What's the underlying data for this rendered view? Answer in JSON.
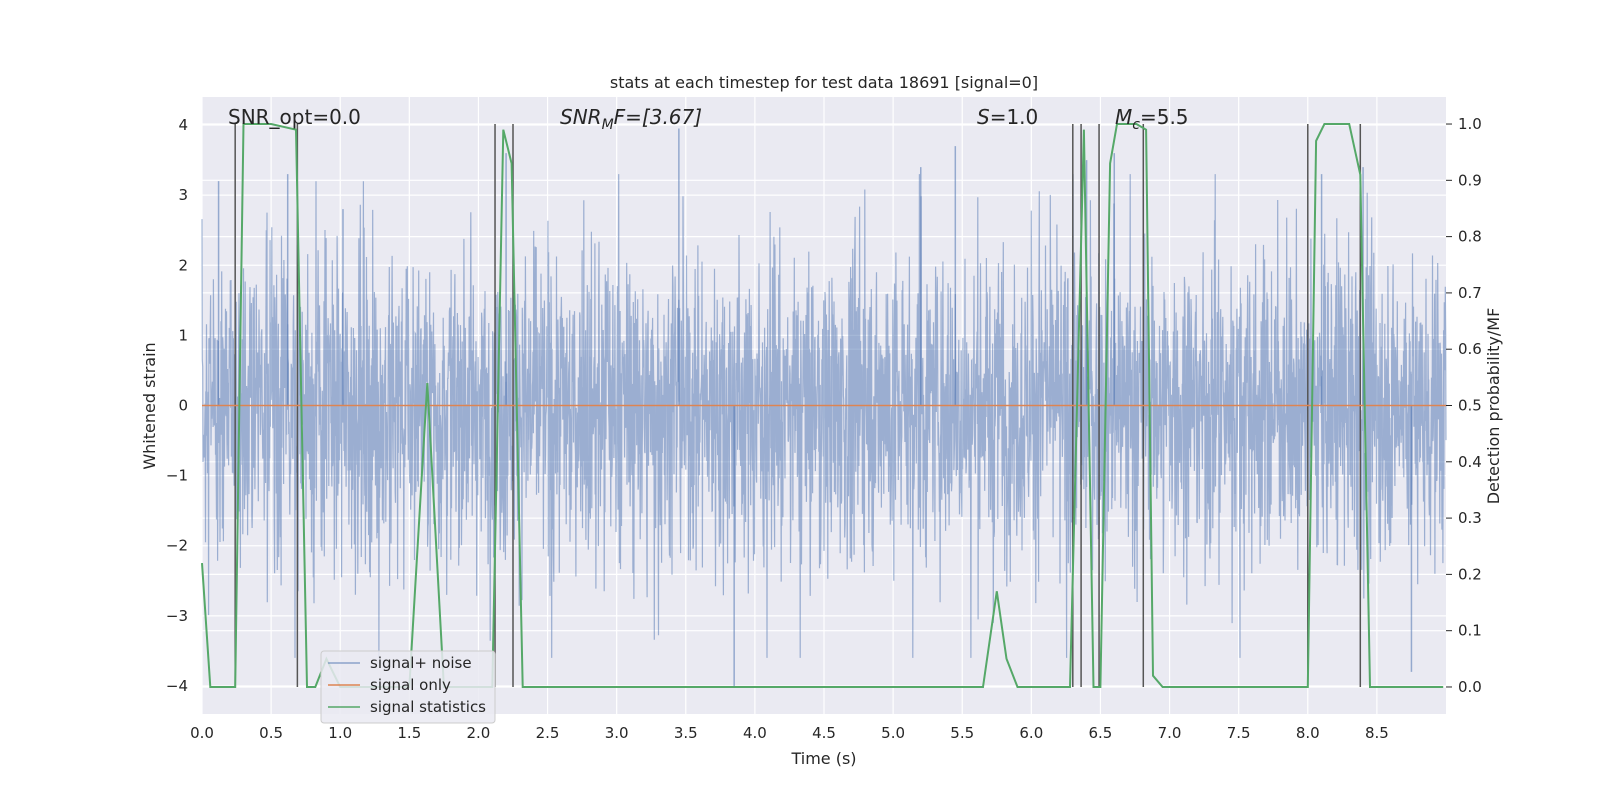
{
  "chart_data": {
    "type": "line",
    "title": "stats at each timestep for test data 18691 [signal=0]",
    "xlabel": "Time (s)",
    "ylabel": "Whitened strain",
    "y2label": "Detection probability/MF",
    "xlim": [
      0,
      9.0
    ],
    "ylim": [
      -4.4,
      4.4
    ],
    "y2lim": [
      -0.048,
      1.048
    ],
    "xticks": [
      0.0,
      0.5,
      1.0,
      1.5,
      2.0,
      2.5,
      3.0,
      3.5,
      4.0,
      4.5,
      5.0,
      5.5,
      6.0,
      6.5,
      7.0,
      7.5,
      8.0,
      8.5
    ],
    "xtick_labels": [
      "0.0",
      "0.5",
      "1.0",
      "1.5",
      "2.0",
      "2.5",
      "3.0",
      "3.5",
      "4.0",
      "4.5",
      "5.0",
      "5.5",
      "6.0",
      "6.5",
      "7.0",
      "7.5",
      "8.0",
      "8.5"
    ],
    "yticks": [
      4,
      3,
      2,
      1,
      0,
      -1,
      -2,
      -3,
      -4
    ],
    "ytick_labels": [
      "4",
      "3",
      "2",
      "1",
      "0",
      "−1",
      "−2",
      "−3",
      "−4"
    ],
    "y2ticks": [
      1.0,
      0.9,
      0.8,
      0.7,
      0.6,
      0.5,
      0.4,
      0.3,
      0.2,
      0.1,
      0.0
    ],
    "y2tick_labels": [
      "1.0",
      "0.9",
      "0.8",
      "0.7",
      "0.6",
      "0.5",
      "0.4",
      "0.3",
      "0.2",
      "0.1",
      "0.0"
    ],
    "grid": true,
    "legend_position": "lower-left",
    "annotations": {
      "snr_opt": "SNR_opt=0.0",
      "snr_mf_main": "SNR",
      "snr_mf_sub": "M",
      "snr_mf_rest": "F=[3.67]",
      "s_main": "S",
      "s_rest": "=1.0",
      "mc_main": "M",
      "mc_sub": "c",
      "mc_rest": "=5.5"
    },
    "series": [
      {
        "name": "signal+ noise",
        "color": "#4c72b0",
        "axis": "left",
        "kind": "noise",
        "envelope_peaks": [
          [
            0.12,
            3.2
          ],
          [
            0.62,
            3.3
          ],
          [
            1.02,
            2.8
          ],
          [
            2.2,
            3.6
          ],
          [
            3.45,
            3.95
          ],
          [
            3.85,
            -4.0
          ],
          [
            5.2,
            3.4
          ],
          [
            5.45,
            3.7
          ],
          [
            6.4,
            3.5
          ],
          [
            6.6,
            3.6
          ],
          [
            8.1,
            3.3
          ],
          [
            8.4,
            3.4
          ],
          [
            8.75,
            -3.8
          ]
        ]
      },
      {
        "name": "signal only",
        "color": "#dd8452",
        "axis": "left",
        "values": [
          [
            0.0,
            0.0
          ],
          [
            9.0,
            0.0
          ]
        ]
      },
      {
        "name": "signal statistics",
        "color": "#55a868",
        "axis": "right",
        "values": [
          [
            0.0,
            0.22
          ],
          [
            0.06,
            0.0
          ],
          [
            0.24,
            0.0
          ],
          [
            0.3,
            1.0
          ],
          [
            0.5,
            1.0
          ],
          [
            0.68,
            0.99
          ],
          [
            0.76,
            0.0
          ],
          [
            0.82,
            0.0
          ],
          [
            0.9,
            0.05
          ],
          [
            1.0,
            0.0
          ],
          [
            1.5,
            0.0
          ],
          [
            1.63,
            0.54
          ],
          [
            1.75,
            0.0
          ],
          [
            2.1,
            0.0
          ],
          [
            2.18,
            0.99
          ],
          [
            2.24,
            0.93
          ],
          [
            2.32,
            0.0
          ],
          [
            5.65,
            0.0
          ],
          [
            5.75,
            0.17
          ],
          [
            5.82,
            0.05
          ],
          [
            5.9,
            0.0
          ],
          [
            6.28,
            0.0
          ],
          [
            6.38,
            0.99
          ],
          [
            6.45,
            0.0
          ],
          [
            6.5,
            0.0
          ],
          [
            6.57,
            0.93
          ],
          [
            6.62,
            1.0
          ],
          [
            6.76,
            1.0
          ],
          [
            6.83,
            0.99
          ],
          [
            6.88,
            0.02
          ],
          [
            6.95,
            0.0
          ],
          [
            8.0,
            0.0
          ],
          [
            8.06,
            0.97
          ],
          [
            8.12,
            1.0
          ],
          [
            8.3,
            1.0
          ],
          [
            8.38,
            0.91
          ],
          [
            8.45,
            0.0
          ],
          [
            8.98,
            0.0
          ]
        ]
      }
    ],
    "vertical_markers": [
      0.24,
      0.69,
      2.12,
      2.25,
      6.3,
      6.36,
      6.49,
      6.81,
      8.0,
      8.38
    ]
  }
}
